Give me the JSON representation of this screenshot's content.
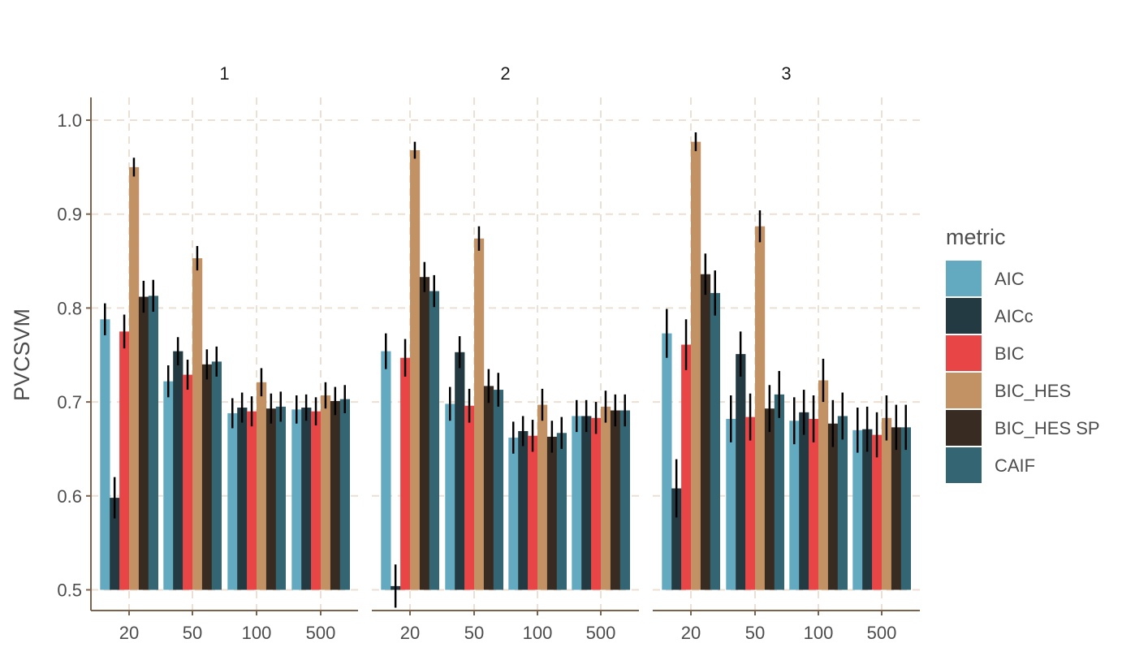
{
  "chart_data": {
    "type": "bar",
    "ylabel": "PVCSVM",
    "xlabel": "",
    "ylim": [
      0.5,
      1.02
    ],
    "yticks": [
      "0.5",
      "0.6",
      "0.7",
      "0.8",
      "0.9",
      "1.0"
    ],
    "grid": true,
    "legend": {
      "title": "metric",
      "position": "right",
      "items": [
        {
          "name": "AIC",
          "color": "#63aac1"
        },
        {
          "name": "AICc",
          "color": "#243a42"
        },
        {
          "name": "BIC",
          "color": "#e84646"
        },
        {
          "name": "BIC_HES",
          "color": "#c39264"
        },
        {
          "name": "BIC_HES SP",
          "color": "#382b22"
        },
        {
          "name": "CAIF",
          "color": "#336572"
        }
      ]
    },
    "categories": [
      "20",
      "50",
      "100",
      "500"
    ],
    "panels": [
      {
        "label": "1",
        "series": [
          {
            "name": "AIC",
            "values": [
              0.788,
              0.722,
              0.688,
              0.692
            ],
            "errors": [
              0.017,
              0.017,
              0.016,
              0.015
            ]
          },
          {
            "name": "AICc",
            "values": [
              0.598,
              0.754,
              0.694,
              0.694
            ],
            "errors": [
              0.022,
              0.015,
              0.016,
              0.014
            ]
          },
          {
            "name": "BIC",
            "values": [
              0.775,
              0.729,
              0.69,
              0.69
            ],
            "errors": [
              0.018,
              0.016,
              0.016,
              0.015
            ]
          },
          {
            "name": "BIC_HES",
            "values": [
              0.95,
              0.853,
              0.721,
              0.707
            ],
            "errors": [
              0.01,
              0.013,
              0.015,
              0.014
            ]
          },
          {
            "name": "BIC_HES SP",
            "values": [
              0.812,
              0.74,
              0.693,
              0.701
            ],
            "errors": [
              0.017,
              0.016,
              0.016,
              0.015
            ]
          },
          {
            "name": "CAIF",
            "values": [
              0.813,
              0.743,
              0.695,
              0.703
            ],
            "errors": [
              0.017,
              0.016,
              0.016,
              0.015
            ]
          }
        ]
      },
      {
        "label": "2",
        "series": [
          {
            "name": "AIC",
            "values": [
              0.754,
              0.698,
              0.662,
              0.685
            ],
            "errors": [
              0.019,
              0.018,
              0.017,
              0.017
            ]
          },
          {
            "name": "AICc",
            "values": [
              0.504,
              0.753,
              0.669,
              0.685
            ],
            "errors": [
              0.023,
              0.017,
              0.016,
              0.017
            ]
          },
          {
            "name": "BIC",
            "values": [
              0.747,
              0.696,
              0.664,
              0.683
            ],
            "errors": [
              0.02,
              0.018,
              0.017,
              0.017
            ]
          },
          {
            "name": "BIC_HES",
            "values": [
              0.968,
              0.874,
              0.697,
              0.695
            ],
            "errors": [
              0.009,
              0.013,
              0.017,
              0.017
            ]
          },
          {
            "name": "BIC_HES SP",
            "values": [
              0.833,
              0.717,
              0.663,
              0.691
            ],
            "errors": [
              0.016,
              0.018,
              0.017,
              0.017
            ]
          },
          {
            "name": "CAIF",
            "values": [
              0.818,
              0.713,
              0.667,
              0.691
            ],
            "errors": [
              0.017,
              0.018,
              0.017,
              0.017
            ]
          }
        ]
      },
      {
        "label": "3",
        "series": [
          {
            "name": "AIC",
            "values": [
              0.773,
              0.682,
              0.68,
              0.67
            ],
            "errors": [
              0.026,
              0.025,
              0.025,
              0.024
            ]
          },
          {
            "name": "AICc",
            "values": [
              0.608,
              0.751,
              0.689,
              0.671
            ],
            "errors": [
              0.031,
              0.024,
              0.024,
              0.024
            ]
          },
          {
            "name": "BIC",
            "values": [
              0.761,
              0.684,
              0.682,
              0.665
            ],
            "errors": [
              0.027,
              0.025,
              0.025,
              0.024
            ]
          },
          {
            "name": "BIC_HES",
            "values": [
              0.977,
              0.887,
              0.723,
              0.683
            ],
            "errors": [
              0.01,
              0.017,
              0.023,
              0.024
            ]
          },
          {
            "name": "BIC_HES SP",
            "values": [
              0.836,
              0.693,
              0.677,
              0.673
            ],
            "errors": [
              0.022,
              0.025,
              0.025,
              0.024
            ]
          },
          {
            "name": "CAIF",
            "values": [
              0.816,
              0.708,
              0.685,
              0.673
            ],
            "errors": [
              0.024,
              0.025,
              0.025,
              0.024
            ]
          }
        ]
      }
    ]
  }
}
